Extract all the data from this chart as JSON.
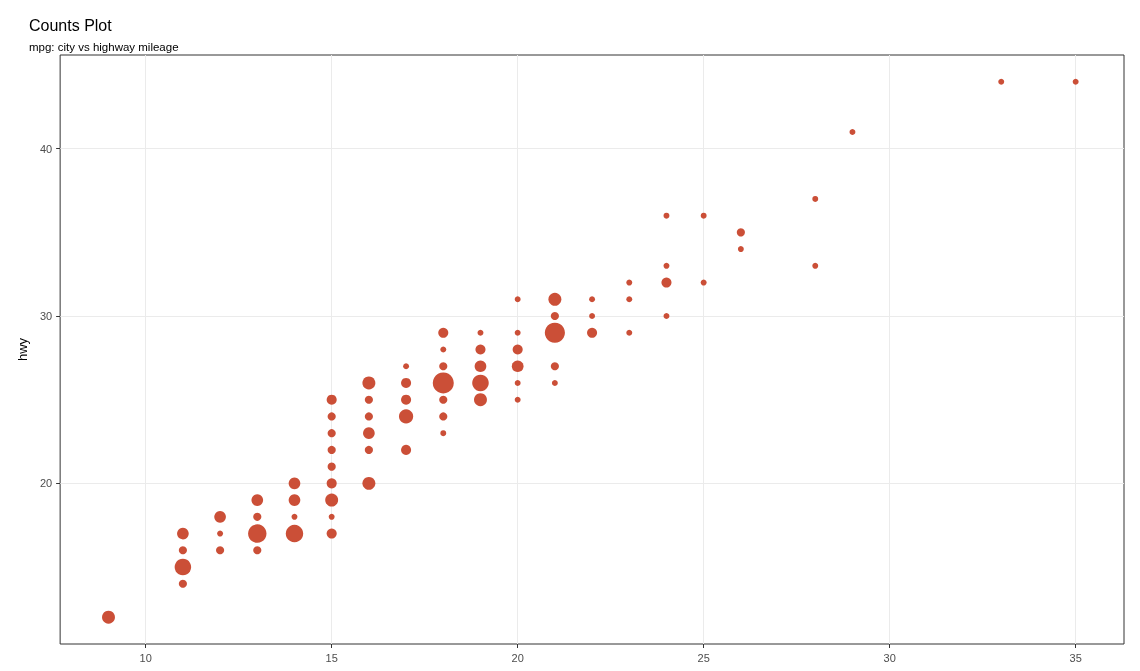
{
  "chart_data": {
    "type": "bubble",
    "title": "Counts Plot",
    "subtitle": "mpg: city vs highway mileage",
    "ylabel": "hwy",
    "xlim": [
      7.7,
      36.3
    ],
    "xticks": [
      10,
      15,
      20,
      25,
      30,
      35
    ],
    "ylim": [
      10.4,
      45.6
    ],
    "yticks": [
      20,
      30,
      40
    ],
    "grid": true,
    "marker": "circle",
    "series": [
      {
        "color": "#cb4f37",
        "x": [
          9,
          11,
          11,
          11,
          11,
          12,
          12,
          12,
          13,
          13,
          13,
          13,
          14,
          14,
          14,
          14,
          15,
          15,
          15,
          15,
          15,
          15,
          15,
          15,
          15,
          16,
          16,
          16,
          16,
          16,
          16,
          17,
          17,
          17,
          17,
          17,
          18,
          18,
          18,
          18,
          18,
          18,
          18,
          19,
          19,
          19,
          19,
          19,
          20,
          20,
          20,
          20,
          20,
          20,
          21,
          21,
          21,
          21,
          21,
          22,
          22,
          22,
          23,
          23,
          23,
          24,
          24,
          24,
          24,
          25,
          25,
          26,
          26,
          28,
          28,
          29,
          33,
          35
        ],
        "values": [
          12,
          14,
          15,
          16,
          17,
          16,
          17,
          18,
          16,
          17,
          18,
          19,
          17,
          18,
          19,
          20,
          17,
          18,
          19,
          20,
          21,
          22,
          23,
          24,
          25,
          20,
          22,
          23,
          24,
          25,
          26,
          22,
          24,
          25,
          26,
          27,
          23,
          24,
          25,
          26,
          27,
          28,
          29,
          25,
          26,
          27,
          28,
          29,
          25,
          26,
          27,
          28,
          29,
          31,
          26,
          27,
          29,
          30,
          31,
          29,
          30,
          31,
          29,
          31,
          32,
          30,
          32,
          33,
          36,
          32,
          36,
          34,
          35,
          33,
          37,
          41,
          44,
          44
        ],
        "sizes": [
          0.38,
          0.15,
          0.62,
          0.15,
          0.31,
          0.15,
          0.08,
          0.31,
          0.15,
          0.77,
          0.15,
          0.31,
          0.69,
          0.08,
          0.31,
          0.31,
          0.23,
          0.08,
          0.38,
          0.23,
          0.15,
          0.15,
          0.15,
          0.15,
          0.23,
          0.38,
          0.15,
          0.31,
          0.15,
          0.15,
          0.38,
          0.23,
          0.46,
          0.23,
          0.23,
          0.08,
          0.08,
          0.15,
          0.15,
          1,
          0.15,
          0.08,
          0.23,
          0.38,
          0.62,
          0.31,
          0.23,
          0.08,
          0.08,
          0.08,
          0.31,
          0.23,
          0.08,
          0.08,
          0.08,
          0.15,
          0.92,
          0.15,
          0.38,
          0.23,
          0.08,
          0.08,
          0.08,
          0.08,
          0.08,
          0.08,
          0.23,
          0.08,
          0.08,
          0.08,
          0.08,
          0.08,
          0.15,
          0.08,
          0.08,
          0.08,
          0.08,
          0.08
        ]
      }
    ]
  }
}
